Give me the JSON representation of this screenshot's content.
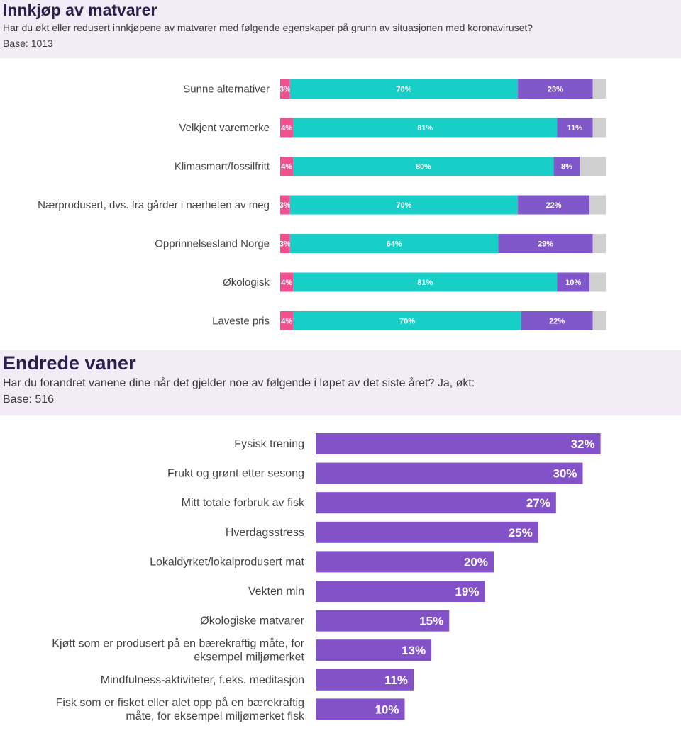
{
  "colors": {
    "reduced": "#f0508f",
    "unchanged": "#17cfc7",
    "increased": "#7f57c9",
    "unsure": "#cfcfcf",
    "bar2": "#8352c8",
    "header_bg": "#f1ecf6"
  },
  "section1": {
    "title": "Innkjøp av matvarer",
    "subtitle": "Har du økt eller redusert innkjøpene av matvarer med følgende egenskaper på grunn av situasjonen med koronaviruset?",
    "base": "Base: 1013"
  },
  "section2": {
    "title": "Endrede vaner",
    "subtitle": "Har du forandret vanene dine når det gjelder noe av følgende i løpet av det siste året? Ja, økt:",
    "base": "Base: 516"
  },
  "chart_data": [
    {
      "type": "bar",
      "orientation": "horizontal",
      "stacked": true,
      "categories": [
        "Sunne alternativer",
        "Velkjent varemerke",
        "Klimasmart/fossilfritt",
        "Nærprodusert, dvs. fra gårder i nærheten av meg",
        "Opprinnelsesland Norge",
        "Økologisk",
        "Laveste pris"
      ],
      "series": [
        {
          "color": "#f0508f",
          "values": [
            3,
            4,
            4,
            3,
            3,
            4,
            4
          ],
          "labels": [
            "3%",
            "4%",
            "4%",
            "3%",
            "3%",
            "4%",
            "4%"
          ]
        },
        {
          "color": "#17cfc7",
          "values": [
            70,
            81,
            80,
            70,
            64,
            81,
            70
          ],
          "labels": [
            "70%",
            "81%",
            "80%",
            "70%",
            "64%",
            "81%",
            "70%"
          ]
        },
        {
          "color": "#7f57c9",
          "values": [
            23,
            11,
            8,
            22,
            29,
            10,
            22
          ],
          "labels": [
            "23%",
            "11%",
            "8%",
            "22%",
            "29%",
            "10%",
            "22%"
          ]
        },
        {
          "color": "#cfcfcf",
          "values": [
            4,
            4,
            8,
            5,
            4,
            5,
            4
          ],
          "labels": [
            "",
            "",
            "",
            "",
            "",
            "",
            ""
          ]
        }
      ],
      "xlim": [
        0,
        100
      ]
    },
    {
      "type": "bar",
      "orientation": "horizontal",
      "categories": [
        "Fysisk trening",
        "Frukt og grønt etter sesong",
        "Mitt totale forbruk av fisk",
        "Hverdagsstress",
        "Lokaldyrket/lokalprodusert mat",
        "Vekten min",
        "Økologiske matvarer",
        "Kjøtt som er produsert på en bærekraftig måte, for eksempel miljømerket",
        "Mindfulness-aktiviteter, f.eks. meditasjon",
        "Fisk som er fisket eller alet opp på en bærekraftig måte, for eksempel miljømerket fisk"
      ],
      "category_lines": [
        [
          "Fysisk trening"
        ],
        [
          "Frukt og grønt etter sesong"
        ],
        [
          "Mitt totale forbruk av fisk"
        ],
        [
          "Hverdagsstress"
        ],
        [
          "Lokaldyrket/lokalprodusert mat"
        ],
        [
          "Vekten min"
        ],
        [
          "Økologiske matvarer"
        ],
        [
          "Kjøtt som er produsert på en bærekraftig måte, for",
          "eksempel miljømerket"
        ],
        [
          "Mindfulness-aktiviteter, f.eks. meditasjon"
        ],
        [
          "Fisk som er fisket eller alet opp på en bærekraftig",
          "måte, for eksempel miljømerket fisk"
        ]
      ],
      "values": [
        32,
        30,
        27,
        25,
        20,
        19,
        15,
        13,
        11,
        10
      ],
      "labels": [
        "32%",
        "30%",
        "27%",
        "25%",
        "20%",
        "19%",
        "15%",
        "13%",
        "11%",
        "10%"
      ]
    }
  ]
}
